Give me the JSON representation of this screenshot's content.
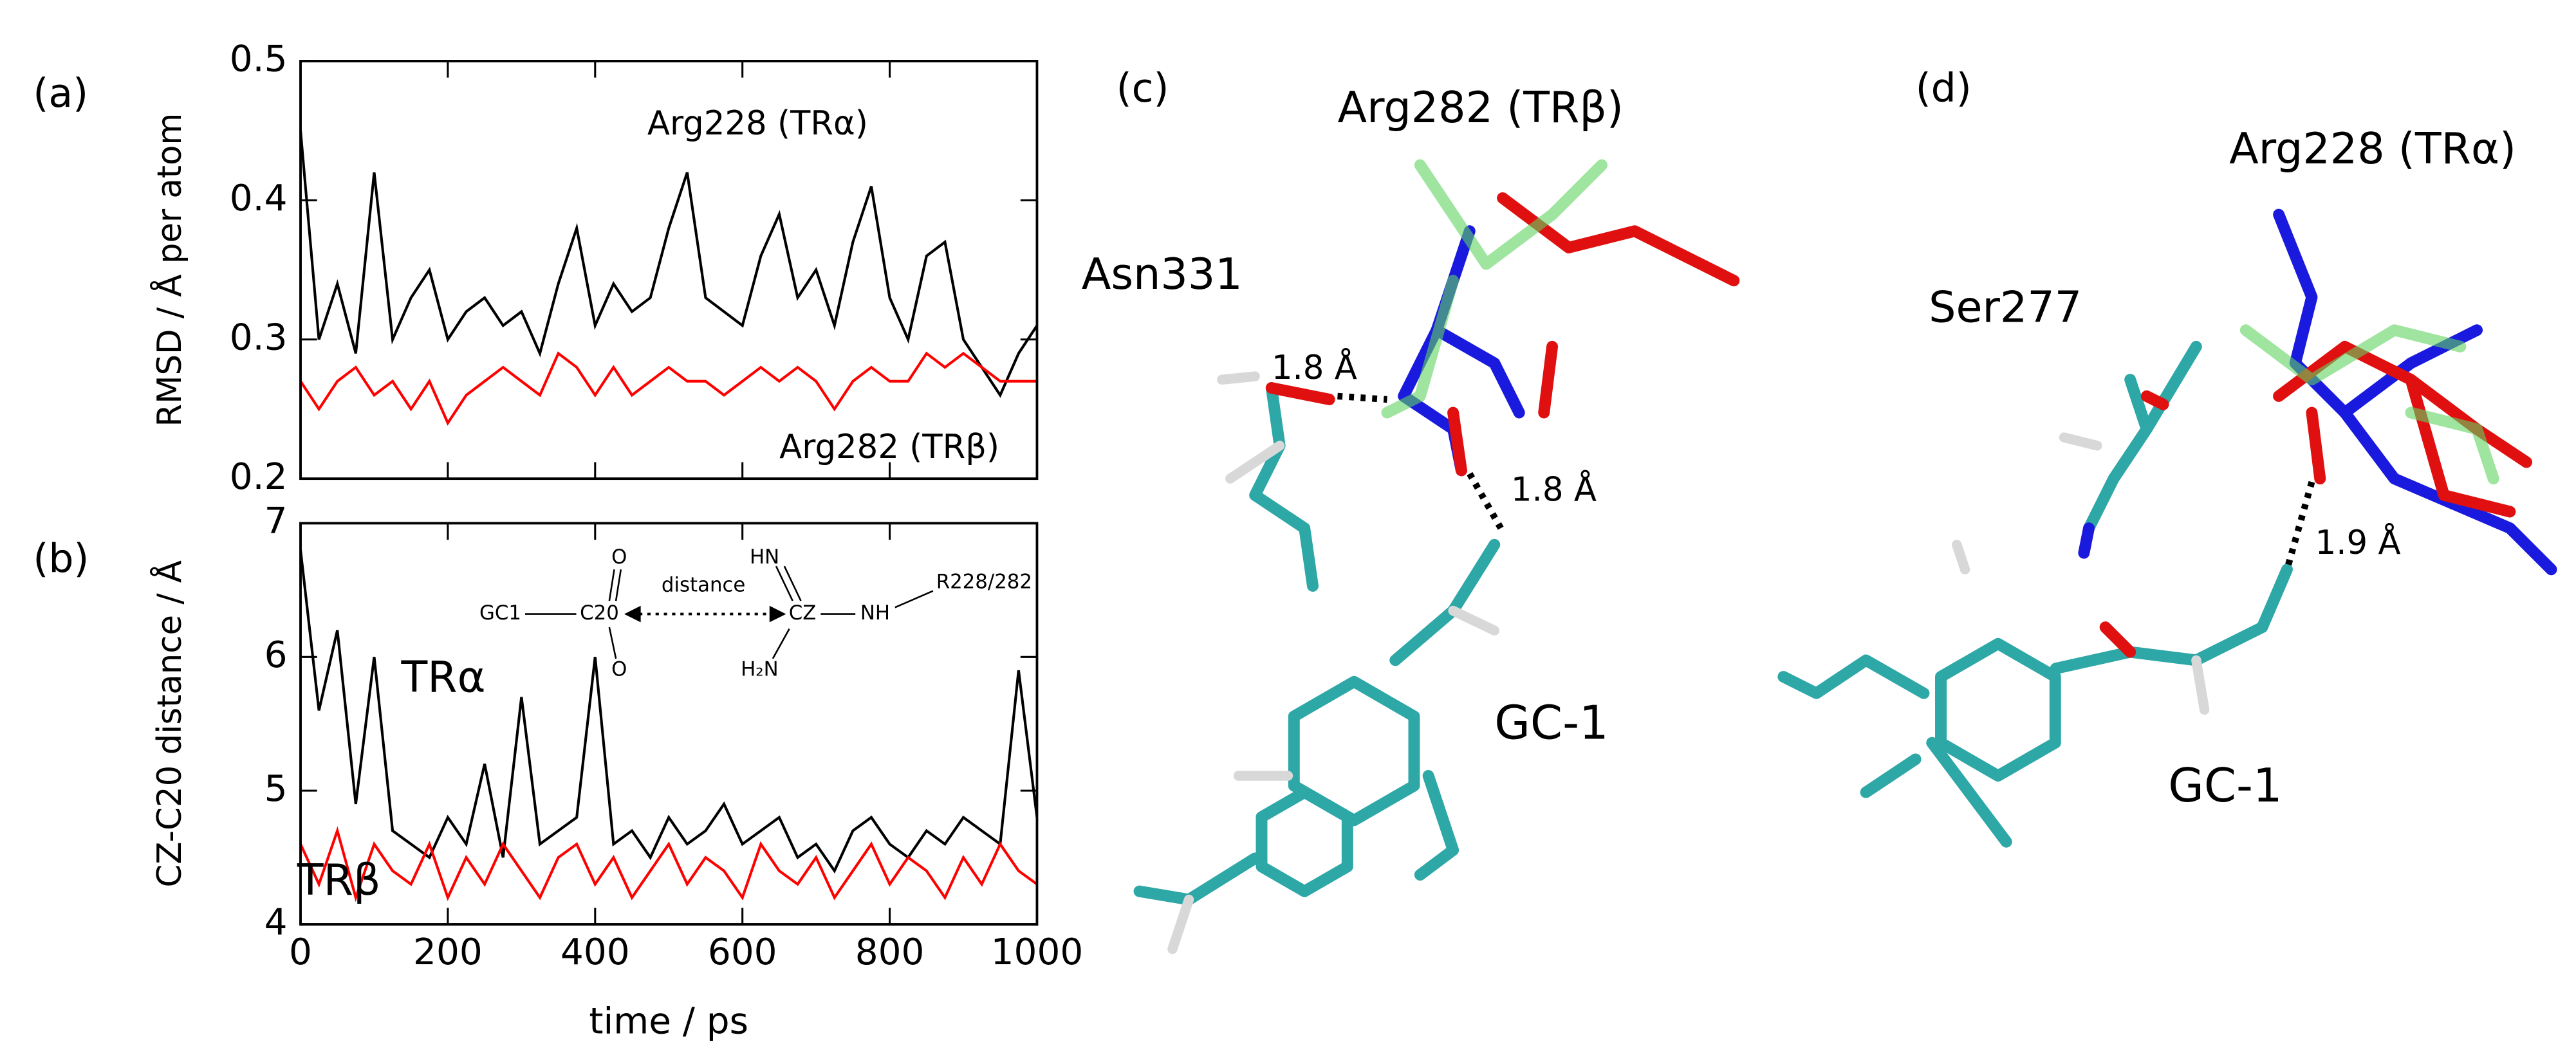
{
  "chart_data": [
    {
      "type": "line",
      "panel_label": "(a)",
      "y_label": "RMSD / Å per atom",
      "x": [
        0,
        25,
        50,
        75,
        100,
        125,
        150,
        175,
        200,
        225,
        250,
        275,
        300,
        325,
        350,
        375,
        400,
        425,
        450,
        475,
        500,
        525,
        550,
        575,
        600,
        625,
        650,
        675,
        700,
        725,
        750,
        775,
        800,
        825,
        850,
        875,
        900,
        925,
        950,
        975,
        1000
      ],
      "xlim": [
        0,
        1000
      ],
      "xticks": [
        0,
        200,
        400,
        600,
        800,
        1000
      ],
      "xtick_labels": false,
      "ylim": [
        0.2,
        0.5
      ],
      "yticks": [
        0.2,
        0.3,
        0.4,
        0.5
      ],
      "series": [
        {
          "name": "Arg228 (TRα)",
          "color": "#000000",
          "values": [
            0.45,
            0.3,
            0.34,
            0.29,
            0.42,
            0.3,
            0.33,
            0.35,
            0.3,
            0.32,
            0.33,
            0.31,
            0.32,
            0.29,
            0.34,
            0.38,
            0.31,
            0.34,
            0.32,
            0.33,
            0.38,
            0.42,
            0.33,
            0.32,
            0.31,
            0.36,
            0.39,
            0.33,
            0.35,
            0.31,
            0.37,
            0.41,
            0.33,
            0.3,
            0.36,
            0.37,
            0.3,
            0.28,
            0.26,
            0.29,
            0.31
          ]
        },
        {
          "name": "Arg282 (TRβ)",
          "color": "#ff0000",
          "values": [
            0.27,
            0.25,
            0.27,
            0.28,
            0.26,
            0.27,
            0.25,
            0.27,
            0.24,
            0.26,
            0.27,
            0.28,
            0.27,
            0.26,
            0.29,
            0.28,
            0.26,
            0.28,
            0.26,
            0.27,
            0.28,
            0.27,
            0.27,
            0.26,
            0.27,
            0.28,
            0.27,
            0.28,
            0.27,
            0.25,
            0.27,
            0.28,
            0.27,
            0.27,
            0.29,
            0.28,
            0.29,
            0.28,
            0.27,
            0.27,
            0.27
          ]
        }
      ]
    },
    {
      "type": "line",
      "panel_label": "(b)",
      "y_label": "CZ-C20 distance / Å",
      "x_label": "time / ps",
      "x": [
        0,
        25,
        50,
        75,
        100,
        125,
        150,
        175,
        200,
        225,
        250,
        275,
        300,
        325,
        350,
        375,
        400,
        425,
        450,
        475,
        500,
        525,
        550,
        575,
        600,
        625,
        650,
        675,
        700,
        725,
        750,
        775,
        800,
        825,
        850,
        875,
        900,
        925,
        950,
        975,
        1000
      ],
      "xlim": [
        0,
        1000
      ],
      "xticks": [
        0,
        200,
        400,
        600,
        800,
        1000
      ],
      "xtick_labels": true,
      "ylim": [
        4,
        7
      ],
      "yticks": [
        4,
        5,
        6,
        7
      ],
      "series": [
        {
          "name": "TRα",
          "color": "#000000",
          "values": [
            6.8,
            5.6,
            6.2,
            4.9,
            6.0,
            4.7,
            4.6,
            4.5,
            4.8,
            4.6,
            5.2,
            4.5,
            5.7,
            4.6,
            4.7,
            4.8,
            6.0,
            4.6,
            4.7,
            4.5,
            4.8,
            4.6,
            4.7,
            4.9,
            4.6,
            4.7,
            4.8,
            4.5,
            4.6,
            4.4,
            4.7,
            4.8,
            4.6,
            4.5,
            4.7,
            4.6,
            4.8,
            4.7,
            4.6,
            5.9,
            4.8
          ]
        },
        {
          "name": "TRβ",
          "color": "#ff0000",
          "values": [
            4.6,
            4.3,
            4.7,
            4.2,
            4.6,
            4.4,
            4.3,
            4.6,
            4.2,
            4.5,
            4.3,
            4.6,
            4.4,
            4.2,
            4.5,
            4.6,
            4.3,
            4.5,
            4.2,
            4.4,
            4.6,
            4.3,
            4.5,
            4.4,
            4.2,
            4.6,
            4.4,
            4.3,
            4.5,
            4.2,
            4.4,
            4.6,
            4.3,
            4.5,
            4.4,
            4.2,
            4.5,
            4.3,
            4.6,
            4.4,
            4.3
          ]
        }
      ],
      "inset_labels": [
        "GC1",
        "C20",
        "O",
        "O",
        "distance",
        "HN",
        "CZ",
        "NH",
        "R228/282",
        "H₂N"
      ]
    }
  ],
  "panel_c": {
    "label": "(c)",
    "residue": "Arg282 (TRβ)",
    "partner": "Asn331",
    "distance_1": "1.8 Å",
    "distance_2": "1.8 Å",
    "ligand": "GC-1"
  },
  "panel_d": {
    "label": "(d)",
    "residue": "Arg228 (TRα)",
    "partner": "Ser277",
    "distance": "1.9 Å",
    "ligand": "GC-1"
  }
}
